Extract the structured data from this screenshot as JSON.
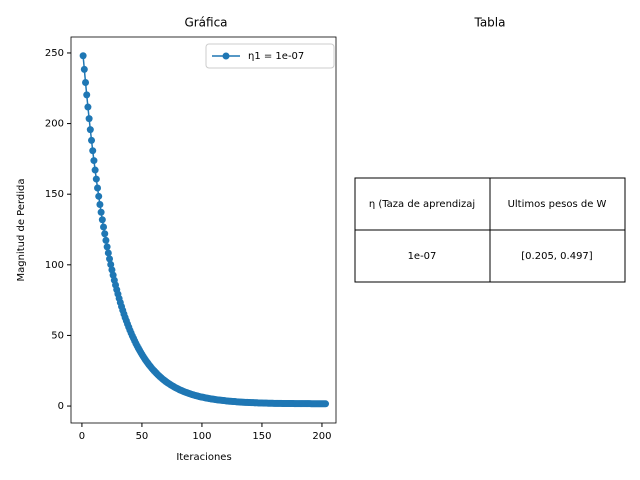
{
  "chart_data": {
    "type": "line",
    "title": "Gráfica",
    "xlabel": "Iteraciones",
    "ylabel": "Magnitud de Perdida",
    "x": [
      1,
      2,
      3,
      4,
      5,
      6,
      7,
      8,
      9,
      10,
      11,
      12,
      13,
      14,
      15,
      16,
      17,
      18,
      19,
      20,
      21,
      22,
      23,
      24,
      25,
      26,
      27,
      28,
      29,
      30,
      31,
      32,
      33,
      34,
      35,
      36,
      37,
      38,
      39,
      40,
      41,
      42,
      43,
      44,
      45,
      46,
      47,
      48,
      49,
      50,
      51,
      52,
      53,
      54,
      55,
      56,
      57,
      58,
      59,
      60,
      61,
      62,
      63,
      64,
      65,
      66,
      67,
      68,
      69,
      70,
      71,
      72,
      73,
      74,
      75,
      76,
      77,
      78,
      79,
      80,
      81,
      82,
      83,
      84,
      85,
      86,
      87,
      88,
      89,
      90,
      91,
      92,
      93,
      94,
      95,
      96,
      97,
      98,
      99,
      100,
      101,
      102,
      103,
      104,
      105,
      106,
      107,
      108,
      109,
      110,
      111,
      112,
      113,
      114,
      115,
      116,
      117,
      118,
      119,
      120,
      121,
      122,
      123,
      124,
      125,
      126,
      127,
      128,
      129,
      130,
      131,
      132,
      133,
      134,
      135,
      136,
      137,
      138,
      139,
      140,
      141,
      142,
      143,
      144,
      145,
      146,
      147,
      148,
      149,
      150,
      151,
      152,
      153,
      154,
      155,
      156,
      157,
      158,
      159,
      160,
      161,
      162,
      163,
      164,
      165,
      166,
      167,
      168,
      169,
      170,
      171,
      172,
      173,
      174,
      175,
      176,
      177,
      178,
      179,
      180,
      181,
      182,
      183,
      184,
      185,
      186,
      187,
      188,
      189,
      190,
      191,
      192,
      193,
      194,
      195,
      196,
      197,
      198,
      199,
      200,
      201,
      202,
      203
    ],
    "series": [
      {
        "name": "η1 = 1e-07",
        "color": "#1f77b4",
        "values": [
          248.0,
          238.4,
          229.1,
          220.3,
          211.7,
          203.5,
          195.7,
          188.1,
          180.8,
          173.8,
          167.1,
          160.7,
          154.4,
          148.5,
          142.7,
          137.2,
          131.9,
          126.8,
          122.0,
          117.3,
          112.7,
          108.4,
          104.2,
          100.2,
          96.4,
          92.7,
          89.1,
          85.7,
          82.4,
          79.3,
          76.2,
          73.3,
          70.5,
          67.8,
          65.2,
          62.7,
          60.4,
          58.1,
          55.9,
          53.7,
          51.7,
          49.7,
          47.9,
          46.1,
          44.3,
          42.6,
          41.0,
          39.5,
          38.0,
          36.6,
          35.2,
          33.9,
          32.6,
          31.4,
          30.3,
          29.1,
          28.1,
          27.0,
          26.0,
          25.1,
          24.2,
          23.3,
          22.4,
          21.6,
          20.8,
          20.1,
          19.3,
          18.6,
          18.0,
          17.3,
          16.7,
          16.1,
          15.6,
          15.0,
          14.5,
          14.0,
          13.5,
          13.0,
          12.6,
          12.2,
          11.7,
          11.3,
          11.0,
          10.6,
          10.2,
          9.9,
          9.6,
          9.3,
          9.0,
          8.7,
          8.4,
          8.1,
          7.9,
          7.6,
          7.4,
          7.2,
          6.9,
          6.7,
          6.5,
          6.3,
          6.2,
          6.0,
          5.8,
          5.6,
          5.5,
          5.3,
          5.2,
          5.0,
          4.9,
          4.8,
          4.6,
          4.5,
          4.4,
          4.3,
          4.2,
          4.1,
          4.0,
          3.9,
          3.8,
          3.7,
          3.6,
          3.5,
          3.4,
          3.4,
          3.3,
          3.2,
          3.2,
          3.1,
          3.0,
          3.0,
          2.9,
          2.8,
          2.8,
          2.7,
          2.7,
          2.6,
          2.6,
          2.6,
          2.5,
          2.5,
          2.4,
          2.4,
          2.4,
          2.3,
          2.3,
          2.3,
          2.2,
          2.2,
          2.2,
          2.2,
          2.1,
          2.1,
          2.1,
          2.1,
          2.0,
          2.0,
          2.0,
          2.0,
          2.0,
          1.9,
          1.9,
          1.9,
          1.9,
          1.9,
          1.9,
          1.9,
          1.8,
          1.8,
          1.8,
          1.8,
          1.8,
          1.8,
          1.8,
          1.8,
          1.8,
          1.8,
          1.7,
          1.7,
          1.7,
          1.7,
          1.7,
          1.7,
          1.7,
          1.7,
          1.7,
          1.7,
          1.7,
          1.7,
          1.7,
          1.7,
          1.6,
          1.6,
          1.6,
          1.6,
          1.6,
          1.6,
          1.6,
          1.6,
          1.6,
          1.6,
          1.6,
          1.6,
          1.6
        ]
      }
    ],
    "xlim": [
      -9.1,
      211.7
    ],
    "ylim": [
      -12.0,
      261.3
    ],
    "xticks": [
      0,
      50,
      100,
      150,
      200
    ],
    "yticks": [
      0,
      50,
      100,
      150,
      200,
      250
    ],
    "legend": "upper right",
    "grid": false
  },
  "table": {
    "title": "Tabla",
    "header": [
      "η (Taza de aprendizaj",
      "Ultimos pesos de W"
    ],
    "rows": [
      [
        "1e-07",
        "[0.205, 0.497]"
      ]
    ]
  }
}
